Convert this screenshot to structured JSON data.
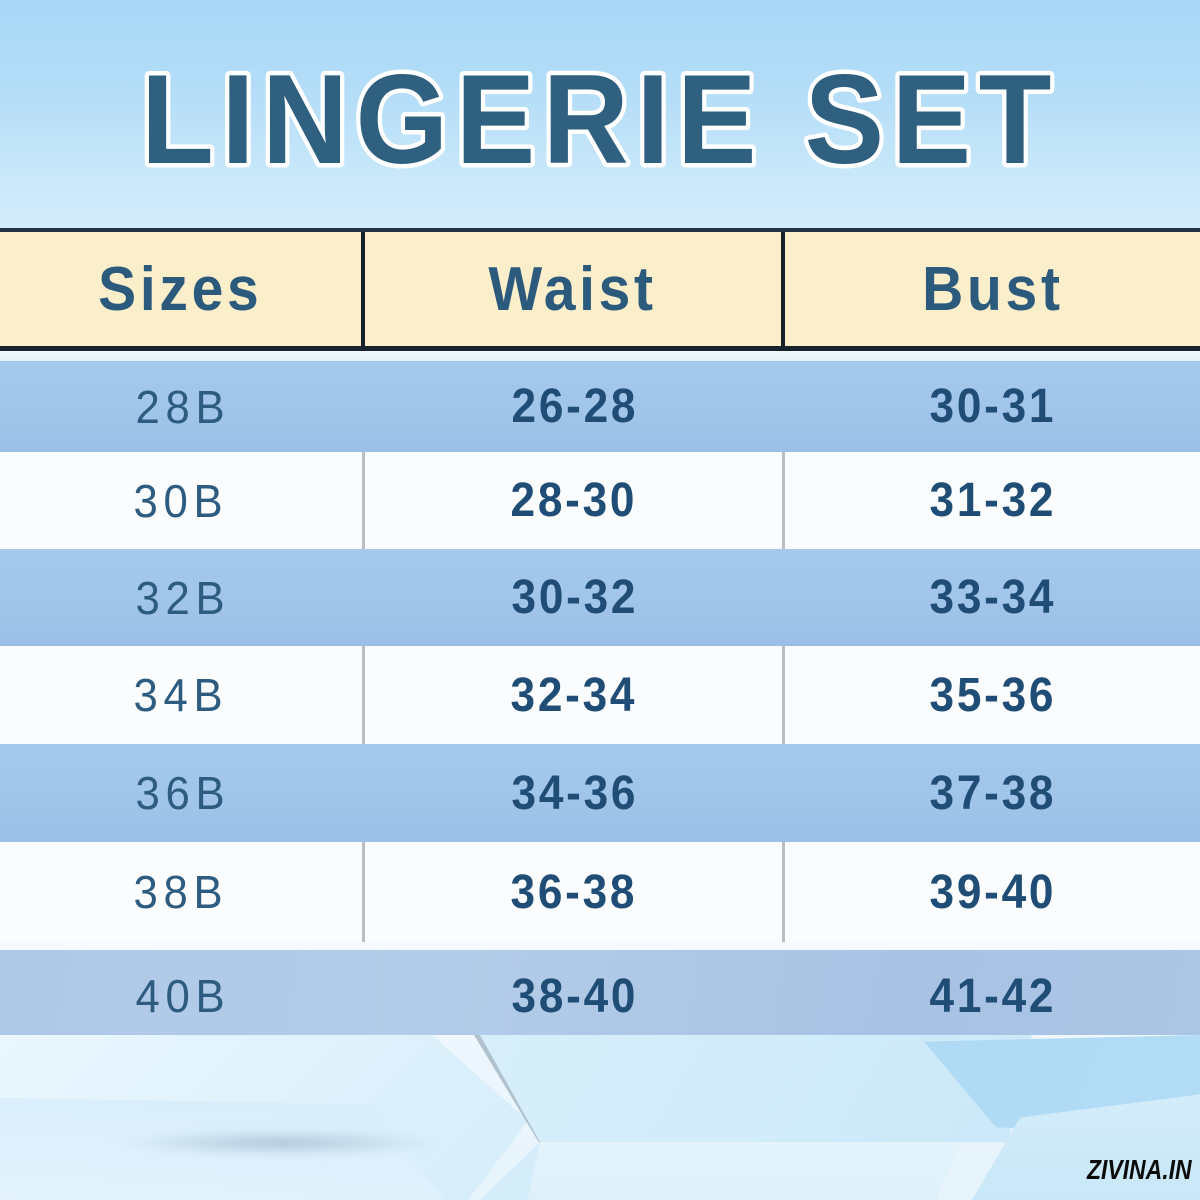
{
  "page": {
    "title": "LINGERIE SET",
    "watermark": "ZIVINA.IN"
  },
  "table": {
    "headers": [
      "Sizes",
      "Waist",
      "Bust"
    ],
    "rows": [
      {
        "size": "28B",
        "waist": "26-28",
        "bust": "30-31"
      },
      {
        "size": "30B",
        "waist": "28-30",
        "bust": "31-32"
      },
      {
        "size": "32B",
        "waist": "30-32",
        "bust": "33-34"
      },
      {
        "size": "34B",
        "waist": "32-34",
        "bust": "35-36"
      },
      {
        "size": "36B",
        "waist": "34-36",
        "bust": "37-38"
      },
      {
        "size": "38B",
        "waist": "36-38",
        "bust": "39-40"
      },
      {
        "size": "40B",
        "waist": "38-40",
        "bust": "41-42"
      }
    ]
  },
  "chart_data": {
    "type": "table",
    "title": "LINGERIE SET",
    "columns": [
      "Sizes",
      "Waist",
      "Bust"
    ],
    "rows": [
      [
        "28B",
        "26-28",
        "30-31"
      ],
      [
        "30B",
        "28-30",
        "31-32"
      ],
      [
        "32B",
        "30-32",
        "33-34"
      ],
      [
        "34B",
        "32-34",
        "35-36"
      ],
      [
        "36B",
        "34-36",
        "37-38"
      ],
      [
        "38B",
        "36-38",
        "39-40"
      ],
      [
        "40B",
        "38-40",
        "41-42"
      ]
    ],
    "layout_hints": {
      "header_bg": "#faeecb",
      "alt_row_bg": [
        "#a0c5e9",
        "#fafcfd"
      ],
      "text_color": "#2b5a7c",
      "title_color": "#30607f",
      "background": "light blue gradient with hexagonal prism shapes at bottom"
    }
  },
  "colors": {
    "banner_top": "#a7d7f6",
    "banner_bottom": "#d3ecfb",
    "title_fill": "#30607f",
    "title_stroke": "#ffffff",
    "header_bg": "#faeecb",
    "header_text": "#2b5a7c",
    "row_blue": "#a0c5e9",
    "row_white": "#fafcfd",
    "value_text": "#204d75",
    "divider_dark": "#15202a",
    "divider_gray": "#b9bec3",
    "watermark": "#0b0b0b"
  }
}
